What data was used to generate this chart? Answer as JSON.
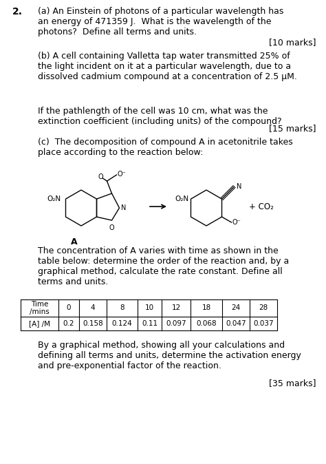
{
  "background_color": "#ffffff",
  "question_number": "2.",
  "part_a_text": "(a) An Einstein of photons of a particular wavelength has\nan energy of 471359 J.  What is the wavelength of the\nphotons?  Define all terms and units.",
  "part_a_marks": "[10 marks]",
  "part_b_text": "(b) A cell containing Valletta tap water transmitted 25% of\nthe light incident on it at a particular wavelength, due to a\ndissolved cadmium compound at a concentration of 2.5 μM.",
  "part_b_sub": "If the pathlength of the cell was 10 cm, what was the\nextinction coefficient (including units) of the compound?",
  "part_b_marks": "[15 marks]",
  "part_c_intro": "(c)  The decomposition of compound A in acetonitrile takes\nplace according to the reaction below:",
  "label_A": "A",
  "co2_label": "+ CO₂",
  "para1": "The concentration of A varies with time as shown in the\ntable below: determine the order of the reaction and, by a\ngraphical method, calculate the rate constant. Define all\nterms and units.",
  "table_col0_header": "Time\n/mins",
  "table_times": [
    "0",
    "4",
    "8",
    "10",
    "12",
    "18",
    "24",
    "28"
  ],
  "table_row_label": "[A] /M",
  "table_values": [
    "0.2",
    "0.158",
    "0.124",
    "0.11",
    "0.097",
    "0.068",
    "0.047",
    "0.037"
  ],
  "para2": "By a graphical method, showing all your calculations and\ndefining all terms and units, determine the activation energy\nand pre-exponential factor of the reaction.",
  "marks2": "[35 marks]",
  "font_size": 9,
  "text_color": "#000000"
}
